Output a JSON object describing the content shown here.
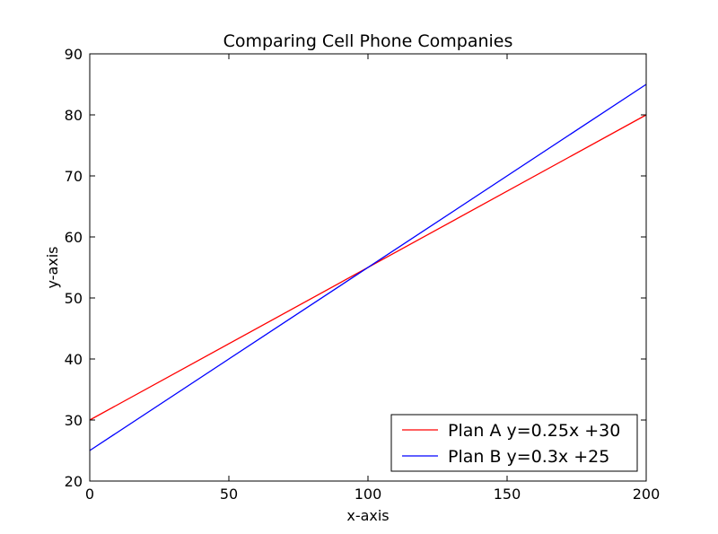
{
  "chart_data": {
    "type": "line",
    "title": "Comparing Cell Phone Companies",
    "xlabel": "x-axis",
    "ylabel": "y-axis",
    "xlim": [
      0,
      200
    ],
    "ylim": [
      20,
      90
    ],
    "xticks": [
      0,
      50,
      100,
      150,
      200
    ],
    "yticks": [
      20,
      30,
      40,
      50,
      60,
      70,
      80,
      90
    ],
    "grid": false,
    "legend_position": "lower-right",
    "series": [
      {
        "name": "Plan A y=0.25x +30",
        "color": "#ff0000",
        "x": [
          0,
          200
        ],
        "y": [
          30,
          80
        ]
      },
      {
        "name": "Plan B y=0.3x +25",
        "color": "#0000ff",
        "x": [
          0,
          200
        ],
        "y": [
          25,
          85
        ]
      }
    ]
  }
}
